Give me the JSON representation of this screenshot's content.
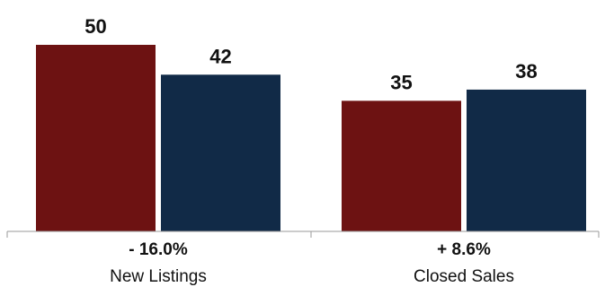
{
  "chart_data": {
    "type": "bar",
    "categories": [
      "New Listings",
      "Closed Sales"
    ],
    "changes": [
      "- 16.0%",
      "+ 8.6%"
    ],
    "series": [
      {
        "values": [
          50,
          42
        ],
        "color": "#6d1212"
      },
      {
        "values": [
          35,
          38
        ],
        "color": "#112a47"
      }
    ],
    "values_by_category": [
      [
        50,
        42
      ],
      [
        35,
        38
      ]
    ],
    "ylim": [
      0,
      50
    ],
    "grid": false,
    "legend": "none"
  }
}
